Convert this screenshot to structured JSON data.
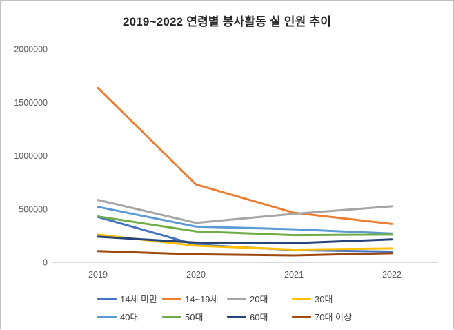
{
  "chart_data": {
    "type": "line",
    "title": "2019~2022 연령별 봉사활동 실 인원 추이",
    "xlabel": "",
    "ylabel": "",
    "categories": [
      "2019",
      "2020",
      "2021",
      "2022"
    ],
    "series": [
      {
        "name": "14세 미만",
        "color": "#4472C4",
        "values": [
          425000,
          165000,
          115000,
          100000
        ]
      },
      {
        "name": "14~19세",
        "color": "#ED7D31",
        "values": [
          1635000,
          730000,
          465000,
          360000
        ]
      },
      {
        "name": "20대",
        "color": "#A5A5A5",
        "values": [
          585000,
          370000,
          455000,
          525000
        ]
      },
      {
        "name": "30대",
        "color": "#FFC000",
        "values": [
          260000,
          155000,
          120000,
          130000
        ]
      },
      {
        "name": "40대",
        "color": "#5B9BD5",
        "values": [
          520000,
          335000,
          310000,
          270000
        ]
      },
      {
        "name": "50대",
        "color": "#70AD47",
        "values": [
          430000,
          290000,
          255000,
          260000
        ]
      },
      {
        "name": "60대",
        "color": "#264478",
        "values": [
          240000,
          185000,
          180000,
          215000
        ]
      },
      {
        "name": "70대 이상",
        "color": "#9E480E",
        "values": [
          105000,
          75000,
          65000,
          85000
        ]
      }
    ],
    "ylim": [
      0,
      2000000
    ],
    "ytick_step": 500000,
    "yticks": [
      "0",
      "500000",
      "1000000",
      "1500000",
      "2000000"
    ],
    "grid": false,
    "legend_position": "bottom",
    "axis_color": "#d9d9d9",
    "tick_color": "#595959"
  }
}
